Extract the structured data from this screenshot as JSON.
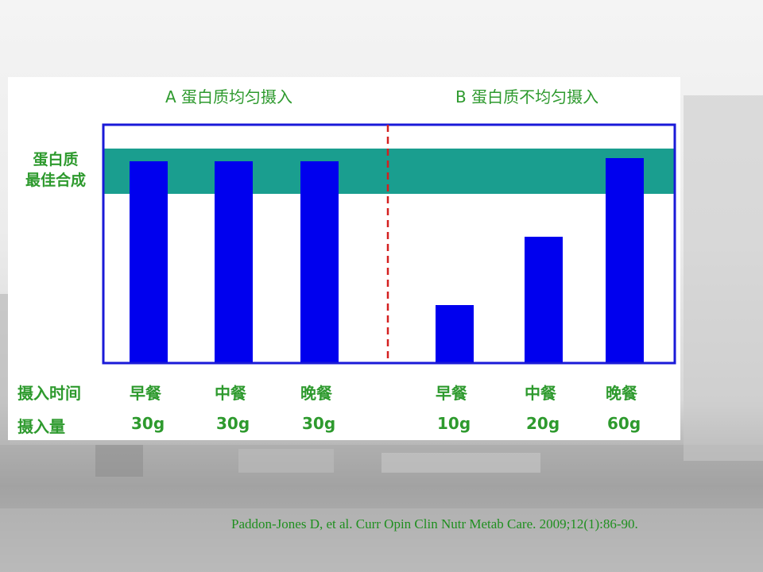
{
  "chart_data": [
    {
      "type": "bar",
      "title": "A 蛋白质均匀摄入",
      "categories": [
        "早餐",
        "中餐",
        "晚餐"
      ],
      "amounts": [
        "30g",
        "30g",
        "30g"
      ],
      "values": [
        30,
        30,
        30
      ]
    },
    {
      "type": "bar",
      "title": "B 蛋白质不均匀摄入",
      "categories": [
        "早餐",
        "中餐",
        "晚餐"
      ],
      "amounts": [
        "10g",
        "20g",
        "60g"
      ],
      "values": [
        10,
        20,
        60
      ]
    }
  ],
  "band": {
    "label_line1": "蛋白质",
    "label_line2": "最佳合成",
    "color": "#1a9e8f"
  },
  "row_labels": {
    "time": "摄入时间",
    "amount": "摄入量"
  },
  "colors": {
    "bar": "#0000ee",
    "frame": "#1a1ad8",
    "divider": "#d42020",
    "text": "#2e9a2e"
  },
  "citation": "Paddon-Jones D, et al. Curr Opin Clin Nutr Metab Care. 2009;12(1):86-90."
}
